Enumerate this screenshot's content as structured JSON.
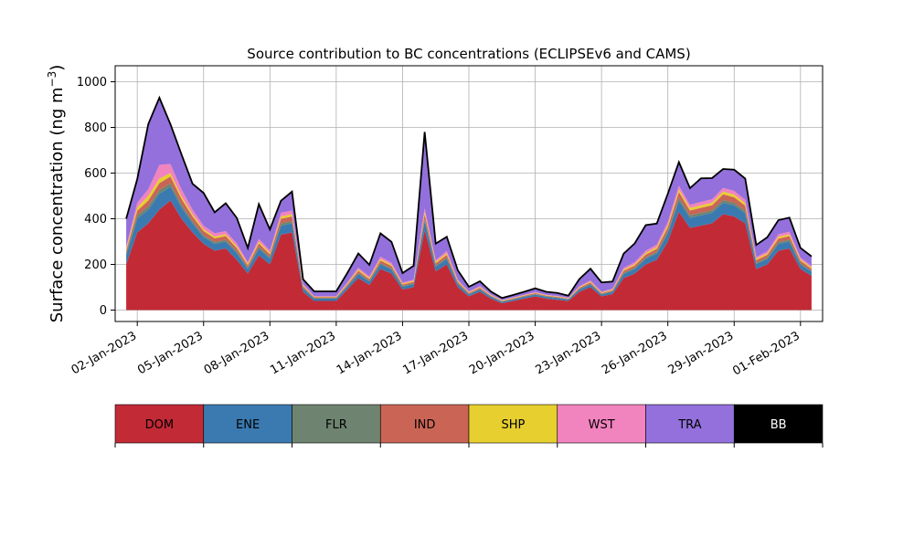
{
  "chart_data": {
    "type": "area",
    "stacked": true,
    "title": "Source contribution to BC concentrations (ECLIPSEv6 and CAMS)",
    "ylabel": "Surface concentration (ng m",
    "ylabel_sup": "−3",
    "ylabel_close": ")",
    "xlabel": "",
    "x_axis": "date",
    "xlim": [
      "2023-01-01",
      "2023-02-02"
    ],
    "ylim": [
      -50,
      1070
    ],
    "grid": true,
    "x_ticks": [
      "2023-01-02",
      "2023-01-05",
      "2023-01-08",
      "2023-01-11",
      "2023-01-14",
      "2023-01-17",
      "2023-01-20",
      "2023-01-23",
      "2023-01-26",
      "2023-01-29",
      "2023-02-01"
    ],
    "x_tick_labels": [
      "02-Jan-2023",
      "05-Jan-2023",
      "08-Jan-2023",
      "11-Jan-2023",
      "14-Jan-2023",
      "17-Jan-2023",
      "20-Jan-2023",
      "23-Jan-2023",
      "26-Jan-2023",
      "29-Jan-2023",
      "01-Feb-2023"
    ],
    "y_ticks": [
      0,
      200,
      400,
      600,
      800,
      1000
    ],
    "y_tick_labels": [
      "0",
      "200",
      "400",
      "600",
      "800",
      "1000"
    ],
    "legend_position": "bottom",
    "dates": [
      "2023-01-01",
      "2023-01-02",
      "2023-01-02",
      "2023-01-03",
      "2023-01-03",
      "2023-01-04",
      "2023-01-04",
      "2023-01-05",
      "2023-01-05",
      "2023-01-06",
      "2023-01-06",
      "2023-01-07",
      "2023-01-07",
      "2023-01-08",
      "2023-01-08",
      "2023-01-09",
      "2023-01-09",
      "2023-01-10",
      "2023-01-10",
      "2023-01-11",
      "2023-01-11",
      "2023-01-12",
      "2023-01-12",
      "2023-01-13",
      "2023-01-13",
      "2023-01-14",
      "2023-01-14",
      "2023-01-15",
      "2023-01-15",
      "2023-01-16",
      "2023-01-16",
      "2023-01-17",
      "2023-01-17",
      "2023-01-18",
      "2023-01-18",
      "2023-01-19",
      "2023-01-19",
      "2023-01-20",
      "2023-01-20",
      "2023-01-21",
      "2023-01-21",
      "2023-01-22",
      "2023-01-22",
      "2023-01-23",
      "2023-01-23",
      "2023-01-24",
      "2023-01-24",
      "2023-01-25",
      "2023-01-25",
      "2023-01-26",
      "2023-01-26",
      "2023-01-27",
      "2023-01-27",
      "2023-01-28",
      "2023-01-28",
      "2023-01-29",
      "2023-01-29",
      "2023-01-30",
      "2023-01-30",
      "2023-01-31",
      "2023-01-31",
      "2023-02-01",
      "2023-02-01"
    ],
    "hours": [
      12,
      0,
      12,
      0,
      12,
      0,
      12,
      0,
      12,
      0,
      12,
      0,
      12,
      0,
      12,
      0,
      12,
      0,
      12,
      0,
      12,
      0,
      12,
      0,
      12,
      0,
      12,
      0,
      12,
      0,
      12,
      0,
      12,
      0,
      12,
      0,
      12,
      0,
      12,
      0,
      12,
      0,
      12,
      0,
      12,
      0,
      12,
      0,
      12,
      0,
      12,
      0,
      12,
      0,
      12,
      0,
      12,
      0,
      12,
      0,
      12,
      0,
      12
    ],
    "series": [
      {
        "name": "DOM",
        "color": "#c22a36",
        "values": [
          200,
          340,
          380,
          440,
          480,
          400,
          340,
          290,
          260,
          270,
          220,
          160,
          240,
          200,
          330,
          340,
          80,
          40,
          40,
          40,
          90,
          140,
          110,
          180,
          160,
          90,
          100,
          350,
          170,
          200,
          100,
          60,
          80,
          50,
          30,
          40,
          50,
          60,
          50,
          45,
          40,
          80,
          100,
          60,
          70,
          140,
          160,
          200,
          220,
          300,
          430,
          360,
          370,
          380,
          420,
          410,
          380,
          180,
          200,
          260,
          270,
          180,
          150
        ]
      },
      {
        "name": "ENE",
        "color": "#3a7ab0",
        "values": [
          40,
          60,
          60,
          70,
          60,
          50,
          40,
          30,
          30,
          30,
          30,
          20,
          30,
          25,
          40,
          40,
          15,
          10,
          10,
          10,
          12,
          18,
          15,
          20,
          18,
          12,
          14,
          40,
          20,
          24,
          14,
          8,
          10,
          8,
          6,
          6,
          8,
          8,
          8,
          8,
          6,
          10,
          12,
          8,
          10,
          18,
          20,
          25,
          28,
          36,
          50,
          44,
          45,
          46,
          50,
          48,
          44,
          22,
          24,
          30,
          30,
          20,
          18
        ]
      },
      {
        "name": "FLR",
        "color": "#6e8470",
        "values": [
          10,
          15,
          15,
          16,
          15,
          12,
          10,
          8,
          8,
          8,
          8,
          6,
          8,
          7,
          10,
          10,
          4,
          3,
          3,
          3,
          4,
          5,
          4,
          6,
          5,
          4,
          4,
          10,
          5,
          6,
          4,
          3,
          3,
          2,
          2,
          2,
          2,
          2,
          2,
          2,
          2,
          3,
          3,
          2,
          3,
          5,
          5,
          6,
          7,
          9,
          12,
          11,
          11,
          11,
          12,
          12,
          11,
          6,
          6,
          8,
          8,
          5,
          4
        ]
      },
      {
        "name": "IND",
        "color": "#ca6556",
        "values": [
          10,
          20,
          25,
          30,
          30,
          25,
          20,
          18,
          16,
          16,
          14,
          10,
          14,
          12,
          20,
          20,
          6,
          3,
          3,
          3,
          6,
          9,
          7,
          11,
          10,
          6,
          6,
          20,
          10,
          12,
          6,
          4,
          5,
          3,
          2,
          3,
          3,
          4,
          3,
          3,
          2,
          5,
          6,
          4,
          4,
          9,
          10,
          12,
          13,
          18,
          25,
          21,
          22,
          22,
          25,
          24,
          22,
          11,
          12,
          15,
          16,
          11,
          9
        ]
      },
      {
        "name": "SHP",
        "color": "#e6cf2e",
        "values": [
          8,
          15,
          20,
          20,
          15,
          12,
          10,
          8,
          8,
          8,
          8,
          6,
          8,
          7,
          10,
          10,
          4,
          2,
          2,
          2,
          4,
          6,
          5,
          7,
          6,
          4,
          4,
          10,
          6,
          7,
          4,
          3,
          3,
          2,
          2,
          2,
          2,
          2,
          2,
          2,
          2,
          3,
          4,
          3,
          3,
          5,
          6,
          7,
          8,
          10,
          12,
          11,
          11,
          11,
          12,
          12,
          11,
          6,
          6,
          8,
          8,
          6,
          5
        ]
      },
      {
        "name": "WST",
        "color": "#f183bf",
        "values": [
          10,
          20,
          30,
          60,
          40,
          30,
          20,
          16,
          14,
          14,
          12,
          8,
          12,
          10,
          16,
          16,
          5,
          3,
          3,
          3,
          5,
          8,
          6,
          10,
          8,
          5,
          5,
          16,
          8,
          10,
          5,
          3,
          4,
          3,
          2,
          2,
          2,
          3,
          2,
          2,
          2,
          4,
          5,
          3,
          4,
          8,
          9,
          10,
          11,
          14,
          16,
          14,
          15,
          15,
          16,
          16,
          15,
          8,
          9,
          11,
          11,
          8,
          7
        ]
      },
      {
        "name": "TRA",
        "color": "#9370db",
        "values": [
          120,
          100,
          280,
          290,
          170,
          150,
          110,
          140,
          90,
          120,
          110,
          60,
          150,
          90,
          50,
          80,
          20,
          20,
          20,
          20,
          40,
          60,
          50,
          100,
          90,
          40,
          60,
          330,
          70,
          60,
          40,
          20,
          20,
          12,
          8,
          10,
          12,
          15,
          12,
          12,
          8,
          30,
          50,
          40,
          30,
          60,
          80,
          110,
          90,
          120,
          100,
          70,
          100,
          90,
          80,
          90,
          90,
          50,
          60,
          60,
          60,
          40,
          40
        ]
      },
      {
        "name": "BB",
        "color": "#000000",
        "values": [
          2,
          4,
          5,
          4,
          4,
          3,
          3,
          3,
          2,
          2,
          2,
          2,
          2,
          2,
          3,
          3,
          1,
          1,
          1,
          1,
          1,
          2,
          1,
          2,
          2,
          1,
          1,
          4,
          2,
          2,
          1,
          1,
          1,
          1,
          1,
          1,
          1,
          1,
          1,
          1,
          1,
          1,
          1,
          1,
          1,
          2,
          2,
          2,
          2,
          3,
          3,
          3,
          3,
          3,
          3,
          3,
          3,
          2,
          2,
          2,
          2,
          2,
          2
        ]
      }
    ]
  }
}
